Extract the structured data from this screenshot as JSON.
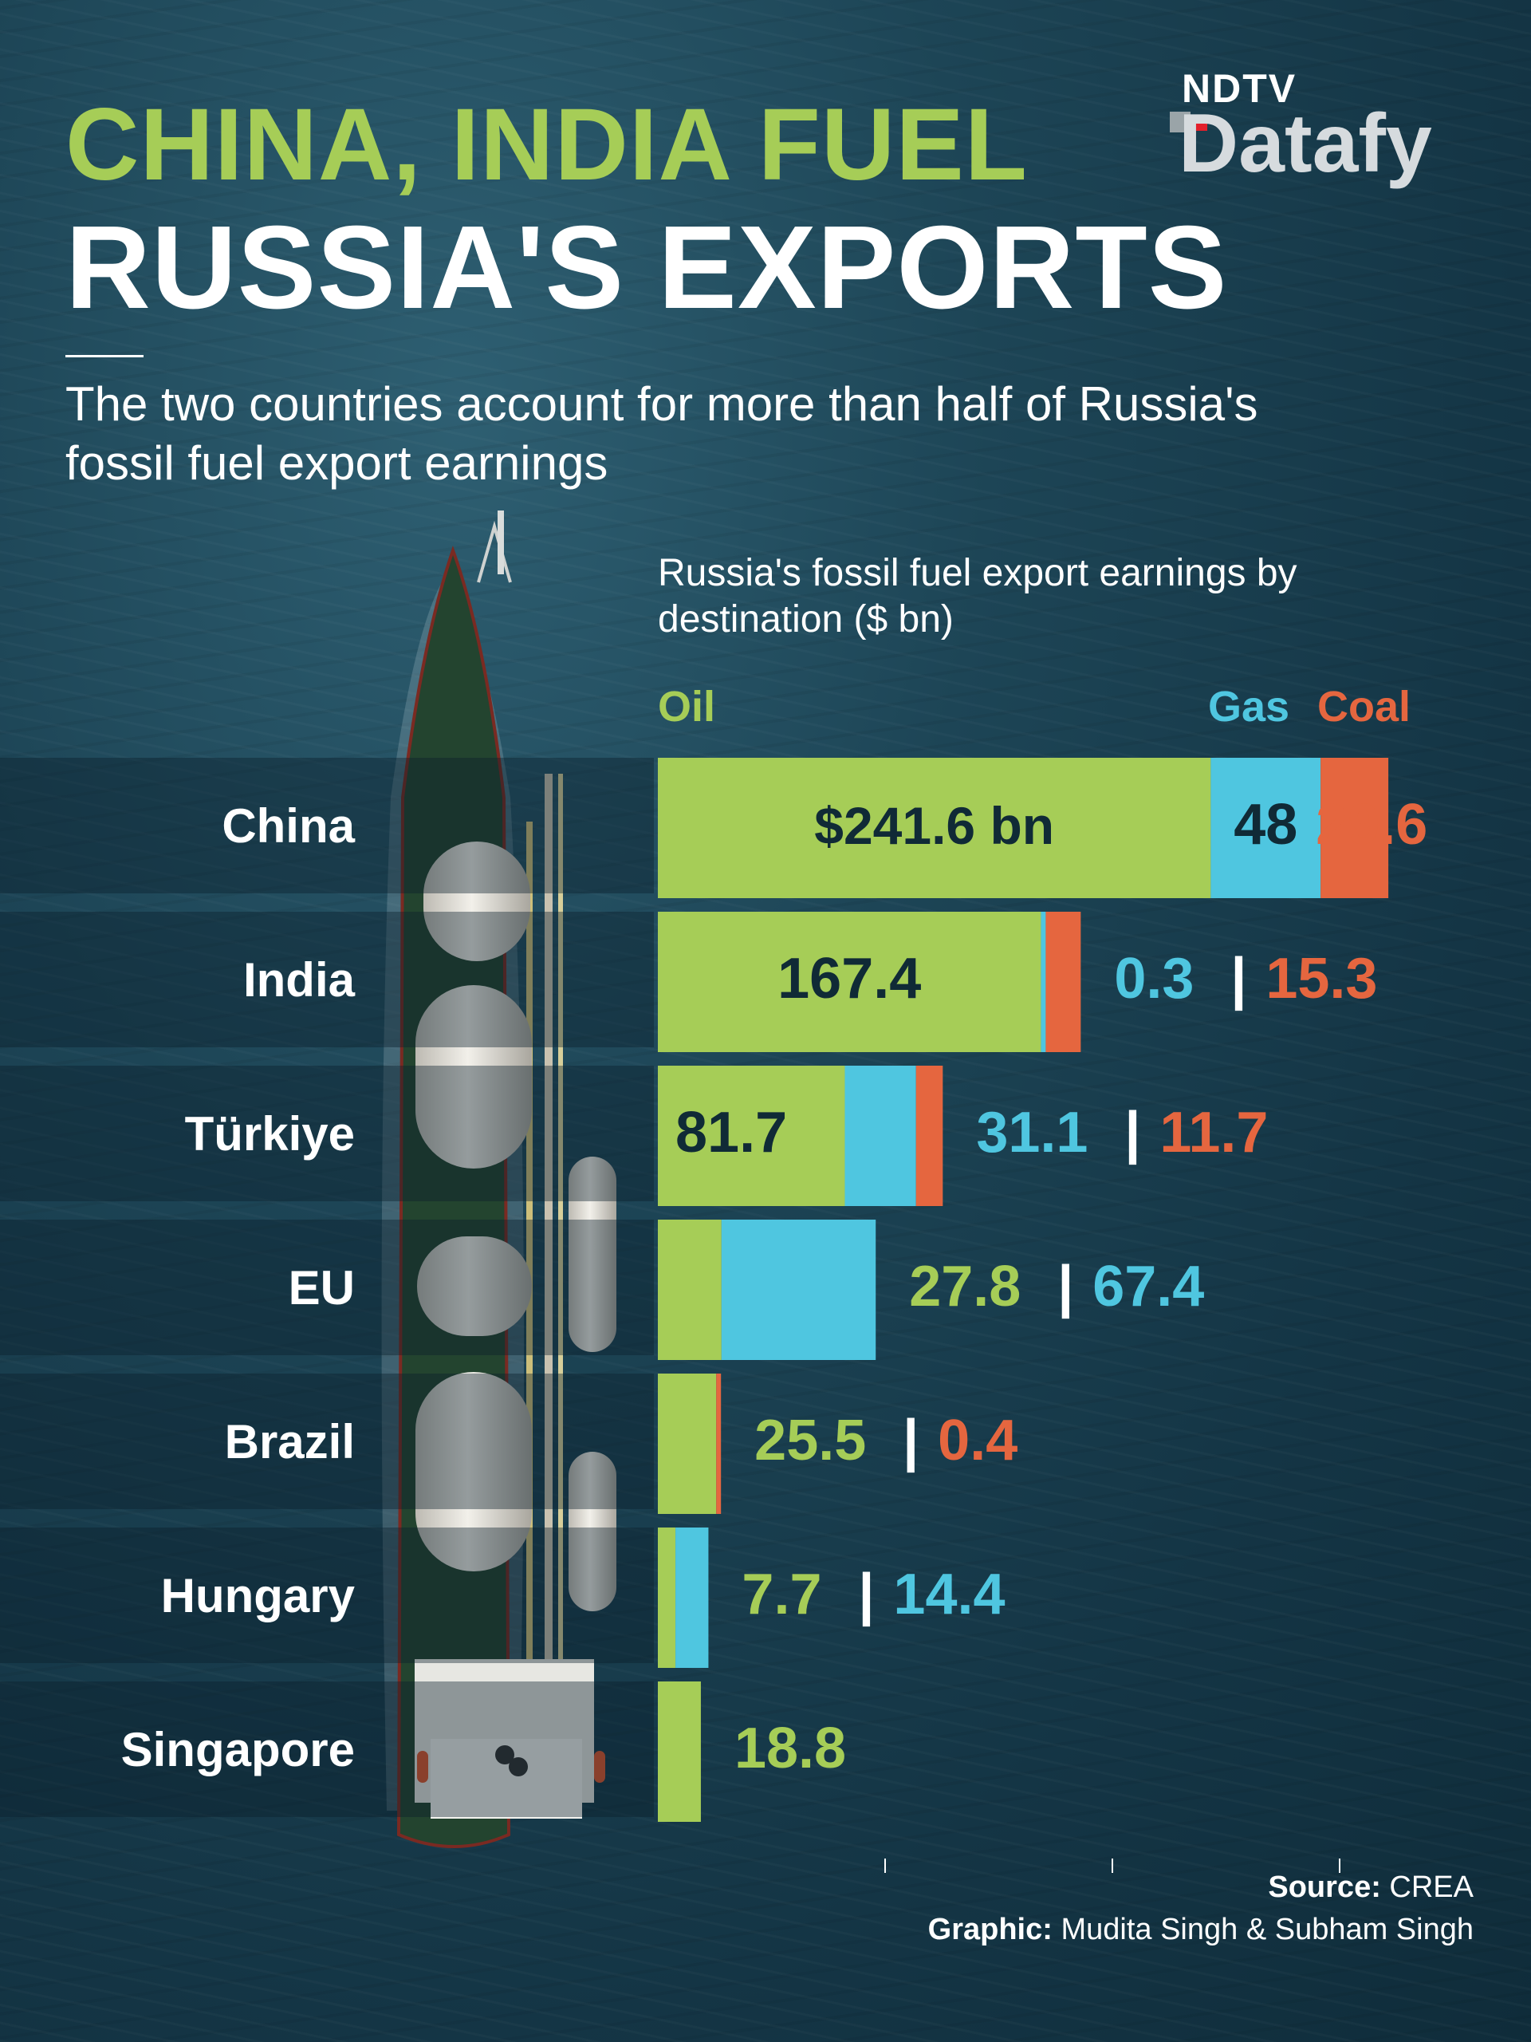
{
  "header": {
    "title_line1": "CHINA, INDIA FUEL",
    "title_line2": "RUSSIA'S EXPORTS",
    "subtitle": "The two countries account for more than half of Russia's fossil fuel export earnings"
  },
  "logo": {
    "top": "NDTV",
    "bottom": "Datafy"
  },
  "footer": {
    "source_label": "Source:",
    "source_value": "CREA",
    "graphic_label": "Graphic:",
    "graphic_value": "Mudita Singh & Subham Singh"
  },
  "colors": {
    "oil": "#a6cd57",
    "gas": "#4fc6e0",
    "coal": "#e5663f",
    "text_dark": "#102a36"
  },
  "chart_data": {
    "type": "bar",
    "orientation": "horizontal",
    "stacked": true,
    "title": "Russia's fossil fuel export earnings by destination ($ bn)",
    "categories": [
      "China",
      "India",
      "Türkiye",
      "EU",
      "Brazil",
      "Hungary",
      "Singapore"
    ],
    "series": [
      {
        "name": "Oil",
        "values": [
          241.6,
          167.4,
          81.7,
          27.8,
          25.5,
          7.7,
          18.8
        ]
      },
      {
        "name": "Gas",
        "values": [
          48,
          0.3,
          31.1,
          67.4,
          0,
          14.4,
          0
        ]
      },
      {
        "name": "Coal",
        "values": [
          29.6,
          15.3,
          11.7,
          0,
          0.4,
          0,
          0
        ]
      }
    ],
    "data_labels": {
      "China": {
        "oil": "$241.6 bn",
        "gas": "48",
        "coal": "29.6"
      },
      "India": {
        "oil": "167.4",
        "gas": "0.3",
        "coal": "15.3"
      },
      "Türkiye": {
        "oil": "81.7",
        "gas": "31.1",
        "coal": "11.7"
      },
      "EU": {
        "oil": "27.8",
        "gas": "67.4"
      },
      "Brazil": {
        "oil": "25.5",
        "coal": "0.4"
      },
      "Hungary": {
        "oil": "7.7",
        "gas": "14.4"
      },
      "Singapore": {
        "oil": "18.8"
      }
    },
    "legend": [
      "Oil",
      "Gas",
      "Coal"
    ],
    "legend_position": "top",
    "grid": false
  }
}
